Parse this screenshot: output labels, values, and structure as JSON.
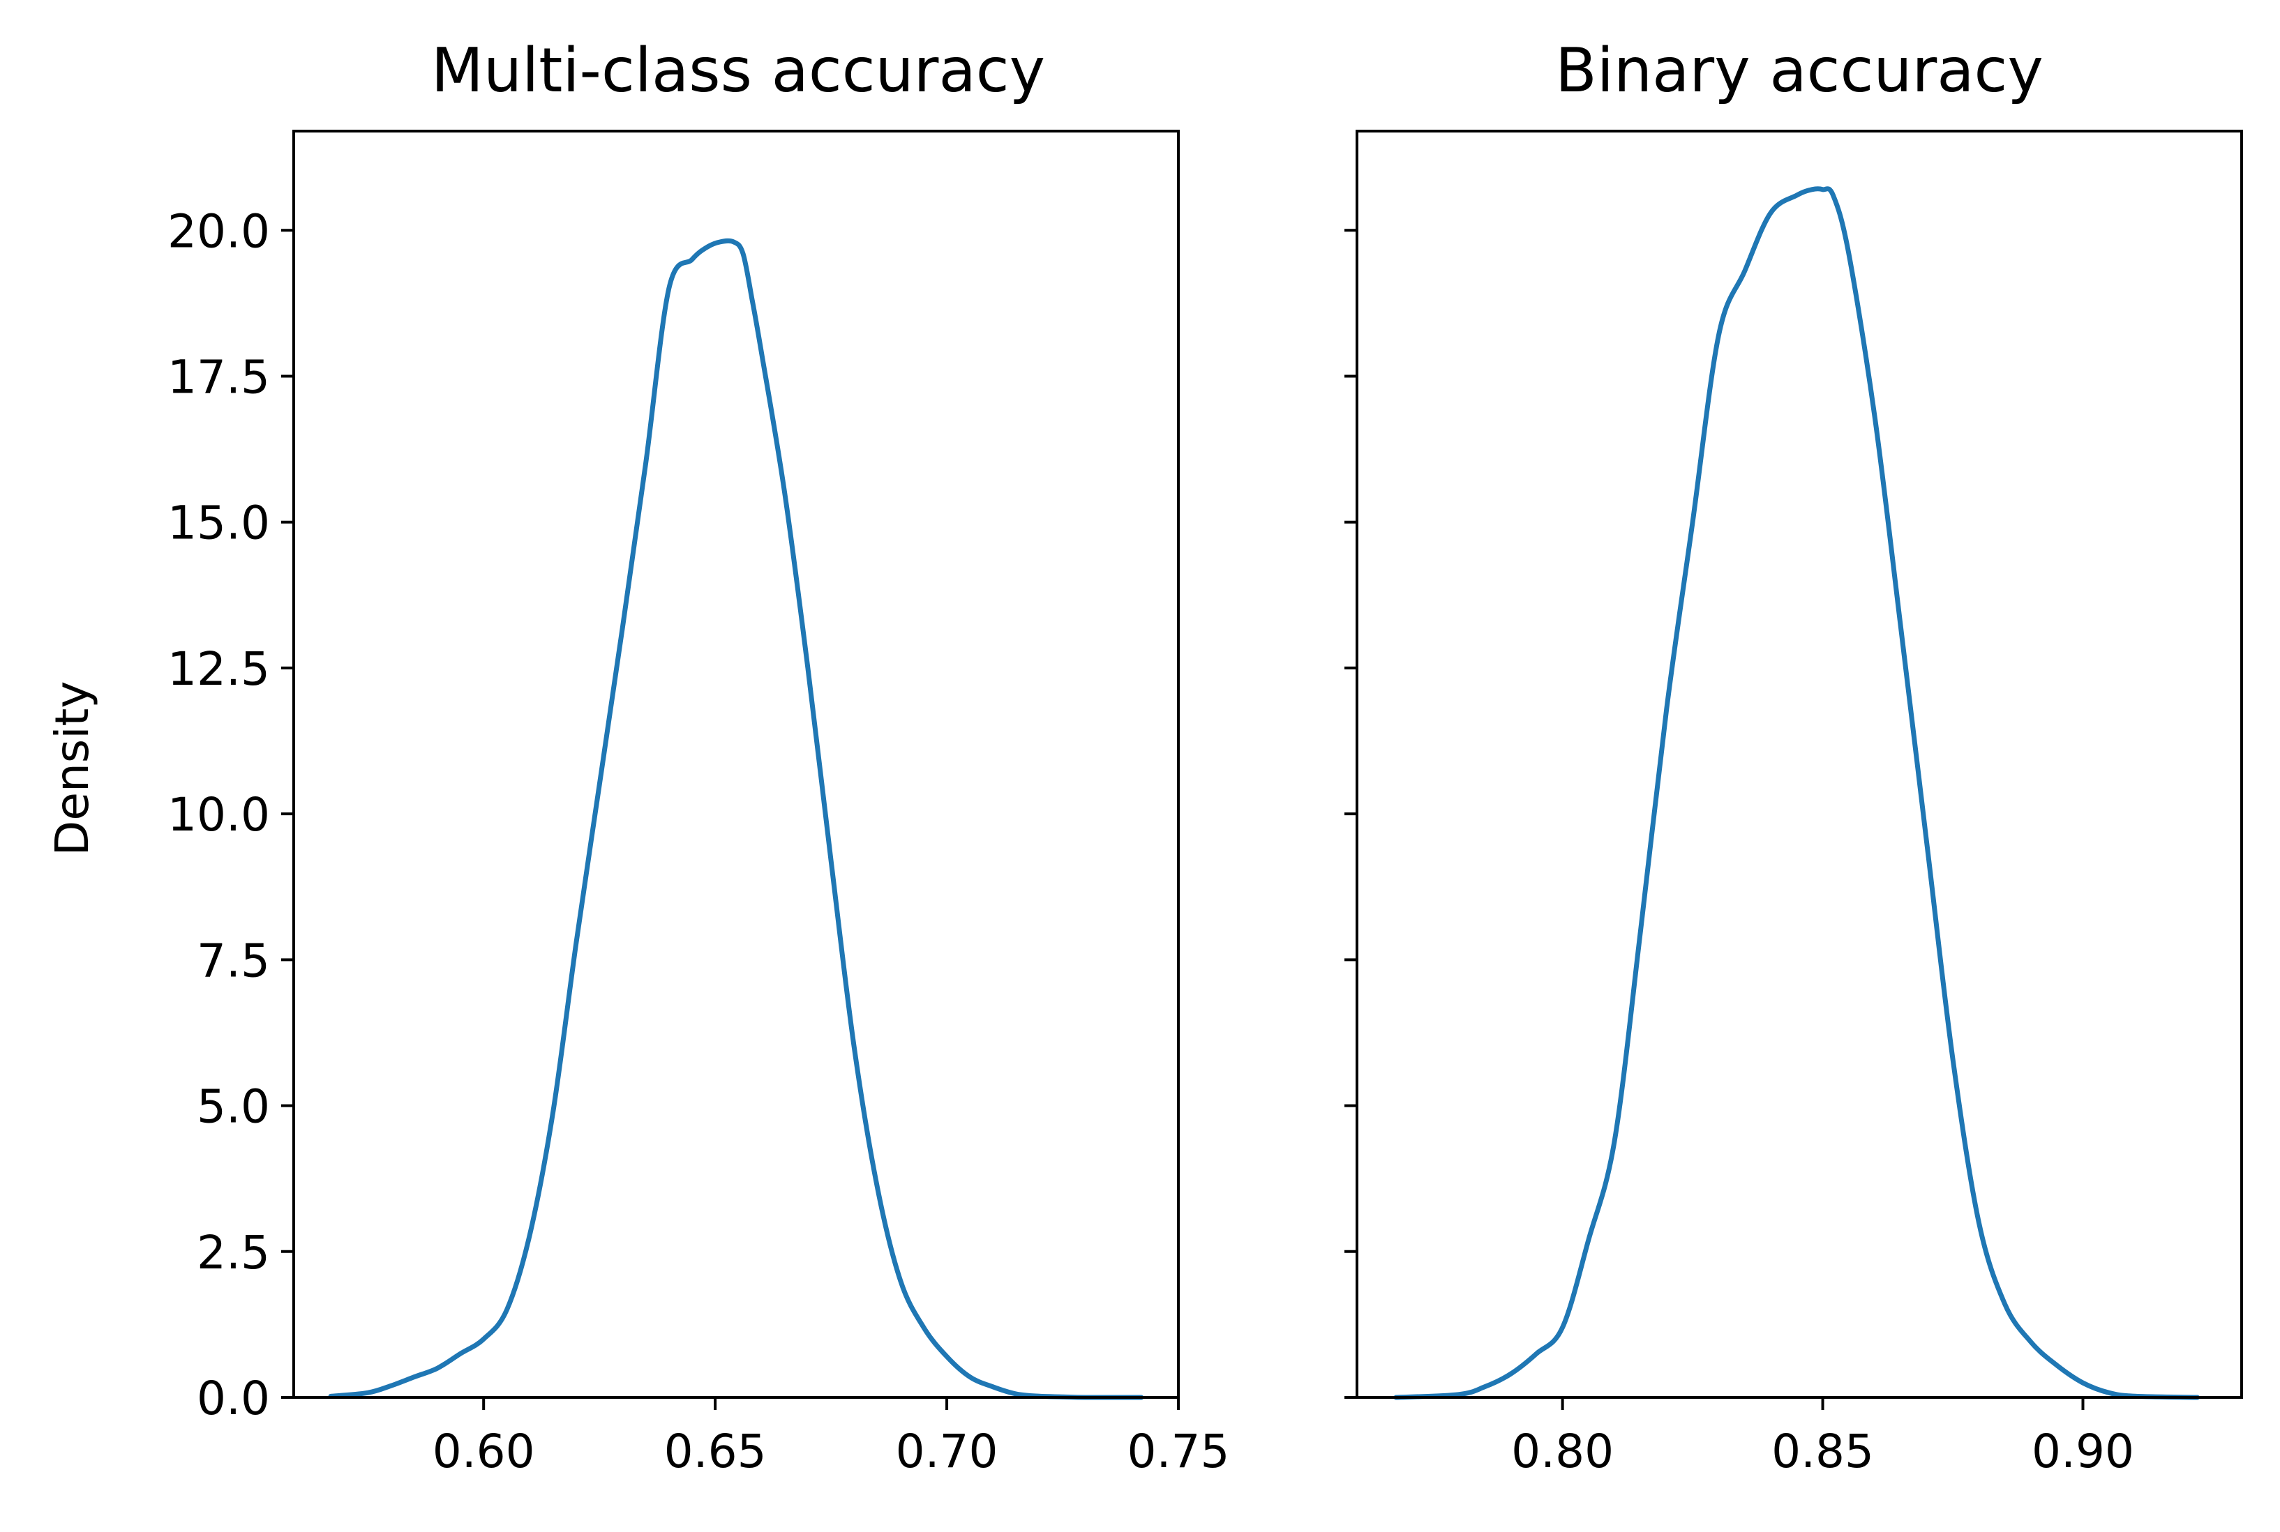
{
  "colors": {
    "line": "#1f77b4",
    "axes": "#000000",
    "background": "#ffffff"
  },
  "chart_data": [
    {
      "type": "line",
      "title": "Multi-class accuracy",
      "xlabel": "",
      "ylabel": "Density",
      "xlim": [
        0.559,
        0.75
      ],
      "ylim": [
        0,
        21.7
      ],
      "grid": false,
      "xticks": [
        0.6,
        0.65,
        0.7,
        0.75
      ],
      "xtick_labels": [
        "0.60",
        "0.65",
        "0.70",
        "0.75"
      ],
      "yticks": [
        0.0,
        2.5,
        5.0,
        7.5,
        10.0,
        12.5,
        15.0,
        17.5,
        20.0
      ],
      "ytick_labels": [
        "0.0",
        "2.5",
        "5.0",
        "7.5",
        "10.0",
        "12.5",
        "15.0",
        "17.5",
        "20.0"
      ],
      "series": [
        {
          "x": [
            0.567,
            0.575,
            0.58,
            0.585,
            0.59,
            0.595,
            0.6,
            0.605,
            0.61,
            0.615,
            0.62,
            0.625,
            0.63,
            0.635,
            0.64,
            0.645,
            0.648,
            0.651,
            0.654,
            0.656,
            0.658,
            0.66,
            0.665,
            0.67,
            0.675,
            0.68,
            0.685,
            0.69,
            0.695,
            0.7,
            0.705,
            0.71,
            0.715,
            0.72,
            0.725,
            0.73,
            0.742
          ],
          "y": [
            0.02,
            0.08,
            0.2,
            0.35,
            0.5,
            0.75,
            1.0,
            1.5,
            2.8,
            4.9,
            7.8,
            10.5,
            13.2,
            16.0,
            19.0,
            19.5,
            19.7,
            19.8,
            19.8,
            19.6,
            18.8,
            17.9,
            15.5,
            12.5,
            9.2,
            6.0,
            3.6,
            2.0,
            1.2,
            0.7,
            0.35,
            0.18,
            0.06,
            0.02,
            0.01,
            0.0,
            0.0
          ]
        }
      ]
    },
    {
      "type": "line",
      "title": "Binary accuracy",
      "xlabel": "",
      "ylabel": "",
      "xlim": [
        0.7605,
        0.9305
      ],
      "ylim": [
        0,
        21.7
      ],
      "grid": false,
      "sharey": true,
      "xticks": [
        0.8,
        0.85,
        0.9
      ],
      "xtick_labels": [
        "0.80",
        "0.85",
        "0.90"
      ],
      "yticks": [
        0.0,
        2.5,
        5.0,
        7.5,
        10.0,
        12.5,
        15.0,
        17.5,
        20.0
      ],
      "series": [
        {
          "x": [
            0.768,
            0.78,
            0.785,
            0.79,
            0.795,
            0.8,
            0.805,
            0.81,
            0.815,
            0.82,
            0.825,
            0.83,
            0.835,
            0.84,
            0.845,
            0.848,
            0.85,
            0.852,
            0.855,
            0.86,
            0.865,
            0.87,
            0.875,
            0.88,
            0.885,
            0.89,
            0.895,
            0.9,
            0.905,
            0.91,
            0.922
          ],
          "y": [
            0.0,
            0.05,
            0.18,
            0.4,
            0.75,
            1.2,
            2.7,
            4.4,
            8.0,
            11.8,
            15.0,
            18.2,
            19.3,
            20.3,
            20.6,
            20.7,
            20.7,
            20.6,
            19.6,
            16.8,
            13.2,
            9.5,
            5.8,
            3.0,
            1.6,
            0.95,
            0.55,
            0.25,
            0.08,
            0.02,
            0.0
          ]
        }
      ]
    }
  ]
}
